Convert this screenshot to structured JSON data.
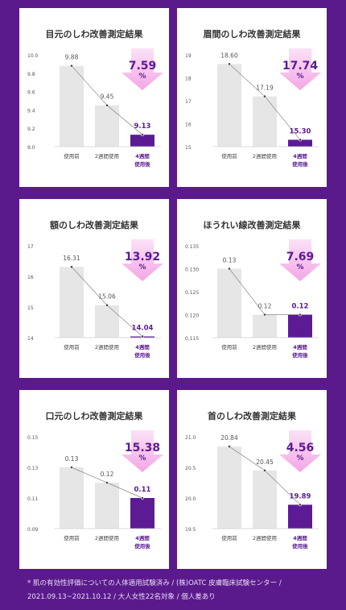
{
  "chart_data": [
    {
      "type": "bar",
      "title": "目元のしわ改善測定結果",
      "categories": [
        "使用前",
        "2週間使用",
        "4週間\n使用後"
      ],
      "values": [
        9.88,
        9.45,
        9.13
      ],
      "value_labels": [
        "9.88",
        "9.45",
        "9.13"
      ],
      "ylim": [
        9.0,
        10.0
      ],
      "yticks": [
        "9.0",
        "9.2",
        "9.4",
        "9.6",
        "9.8",
        "10.0"
      ],
      "improvement": "7.59",
      "unit": "%"
    },
    {
      "type": "bar",
      "title": "眉間のしわ改善測定結果",
      "categories": [
        "使用前",
        "2週間使用",
        "4週間\n使用後"
      ],
      "values": [
        18.6,
        17.19,
        15.3
      ],
      "value_labels": [
        "18.60",
        "17.19",
        "15.30"
      ],
      "ylim": [
        15,
        19
      ],
      "yticks": [
        "15",
        "16",
        "17",
        "18",
        "19"
      ],
      "improvement": "17.74",
      "unit": "%"
    },
    {
      "type": "bar",
      "title": "額のしわ改善測定結果",
      "categories": [
        "使用前",
        "2週間使用",
        "4週間\n使用後"
      ],
      "values": [
        16.31,
        15.06,
        14.04
      ],
      "value_labels": [
        "16.31",
        "15.06",
        "14.04"
      ],
      "ylim": [
        14,
        17
      ],
      "yticks": [
        "14",
        "15",
        "16",
        "17"
      ],
      "improvement": "13.92",
      "unit": "%"
    },
    {
      "type": "bar",
      "title": "ほうれい線改善測定結果",
      "categories": [
        "使用前",
        "2週間使用",
        "4週間\n使用後"
      ],
      "values": [
        0.13,
        0.12,
        0.12
      ],
      "value_labels": [
        "0.13",
        "0.12",
        "0.12"
      ],
      "ylim": [
        0.115,
        0.135
      ],
      "yticks": [
        "0.115",
        "0.120",
        "0.125",
        "0.130",
        "0.135"
      ],
      "improvement": "7.69",
      "unit": "%"
    },
    {
      "type": "bar",
      "title": "口元のしわ改善測定結果",
      "categories": [
        "使用前",
        "2週間使用",
        "4週間\n使用後"
      ],
      "values": [
        0.13,
        0.12,
        0.11
      ],
      "value_labels": [
        "0.13",
        "0.12",
        "0.11"
      ],
      "ylim": [
        0.09,
        0.15
      ],
      "yticks": [
        "0.09",
        "0.11",
        "0.13",
        "0.15"
      ],
      "improvement": "15.38",
      "unit": "%"
    },
    {
      "type": "bar",
      "title": "首のしわ改善測定結果",
      "categories": [
        "使用前",
        "2週間使用",
        "4週間\n使用後"
      ],
      "values": [
        20.84,
        20.45,
        19.89
      ],
      "value_labels": [
        "20.84",
        "20.45",
        "19.89"
      ],
      "ylim": [
        19.5,
        21.0
      ],
      "yticks": [
        "19.5",
        "20.0",
        "20.5",
        "21.0"
      ],
      "improvement": "4.56",
      "unit": "%"
    }
  ],
  "colors": {
    "background": "#5a1a8c",
    "bar_gray": "#e6e6e6",
    "bar_highlight": "#5c1a94",
    "arrow_pink": "#f3a6e6",
    "arrow_text": "#5c1a94"
  },
  "footnote": {
    "line1": "* 肌の有効性評価についての人体適用試験済み / (株)OATC 皮膚臨床試験センター /",
    "line2": "2021.09.13~2021.10.12 / 大人女性22名対象 / 個人差あり"
  }
}
